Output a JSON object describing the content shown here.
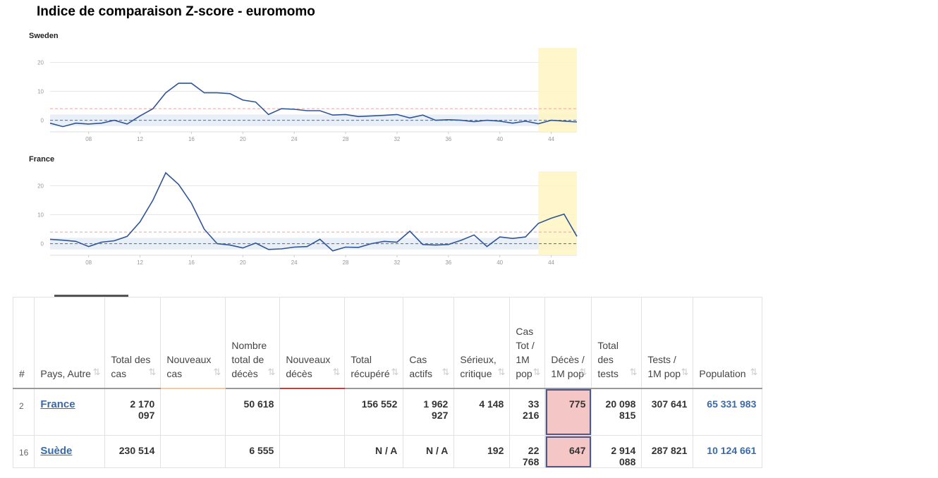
{
  "title": "Indice de comparaison Z-score - euromomo",
  "chart_data": [
    {
      "type": "line",
      "title": "Sweden",
      "color": "#2f5597",
      "x": [
        5,
        6,
        7,
        8,
        9,
        10,
        11,
        12,
        13,
        14,
        15,
        16,
        17,
        18,
        19,
        20,
        21,
        22,
        23,
        24,
        25,
        26,
        27,
        28,
        29,
        30,
        31,
        32,
        33,
        34,
        35,
        36,
        37,
        38,
        39,
        40,
        41,
        42,
        43,
        44,
        45,
        46
      ],
      "values": [
        -1,
        -2.2,
        -1,
        -1.3,
        -1,
        0,
        -1.3,
        1.5,
        4,
        9.5,
        12.8,
        12.8,
        9.5,
        9.5,
        9.2,
        7,
        6.3,
        2,
        4,
        3.8,
        3.3,
        3.3,
        1.8,
        2,
        1.3,
        1.5,
        1.7,
        2,
        0.8,
        1.8,
        0,
        0.2,
        0,
        -0.5,
        0,
        -0.3,
        -1,
        -0.3,
        -1.2,
        0,
        -0.3,
        -0.6
      ],
      "xlim": [
        5,
        46
      ],
      "ylim": [
        -4,
        25
      ],
      "xticks": [
        {
          "value": 8,
          "label": "08"
        },
        12,
        16,
        20,
        24,
        28,
        32,
        36,
        40,
        44
      ],
      "yticks": [
        0,
        10,
        20
      ],
      "grid": true,
      "threshold": 4,
      "baseline": 0,
      "band": [
        -2,
        2
      ],
      "highlight": [
        43,
        46
      ]
    },
    {
      "type": "line",
      "title": "France",
      "color": "#2f5597",
      "x": [
        5,
        6,
        7,
        8,
        9,
        10,
        11,
        12,
        13,
        14,
        15,
        16,
        17,
        18,
        19,
        20,
        21,
        22,
        23,
        24,
        25,
        26,
        27,
        28,
        29,
        30,
        31,
        32,
        33,
        34,
        35,
        36,
        37,
        38,
        39,
        40,
        41,
        42,
        43,
        44,
        45,
        46
      ],
      "values": [
        1.5,
        1.2,
        0.8,
        -1,
        0.5,
        1,
        2.5,
        7.5,
        15,
        24.5,
        20.5,
        14,
        5,
        0,
        -0.5,
        -1.5,
        0.2,
        -2,
        -1.8,
        -1.2,
        -1,
        1.5,
        -2.5,
        -1.2,
        -1.3,
        0,
        0.8,
        0.5,
        4.3,
        -0.3,
        -0.5,
        -0.3,
        1.2,
        3,
        -1,
        2.3,
        1.8,
        2.3,
        7,
        8.8,
        10.2,
        2.5
      ],
      "xlim": [
        5,
        46
      ],
      "ylim": [
        -4,
        25
      ],
      "xticks": [
        {
          "value": 8,
          "label": "08"
        },
        12,
        16,
        20,
        24,
        28,
        32,
        36,
        40,
        44
      ],
      "yticks": [
        0,
        10,
        20
      ],
      "grid": true,
      "threshold": 4,
      "baseline": 0,
      "band": [
        -2,
        2
      ],
      "highlight": [
        43,
        46
      ]
    }
  ],
  "table": {
    "headers": [
      "#",
      "Pays, Autre",
      "Total des cas",
      "Nouveaux cas",
      "Nombre total de décès",
      "Nouveaux décès",
      "Total récupéré",
      "Cas actifs",
      "Sérieux, critique",
      "Cas Tot / 1M pop",
      "Décès / 1M pop",
      "Total des tests",
      "Tests / 1M pop",
      "Population"
    ],
    "rows": [
      [
        "2",
        "France",
        "2 170 097",
        null,
        "50 618",
        null,
        "156 552",
        "1 962 927",
        "4 148",
        "33 216",
        "775",
        "20 098 815",
        "307 641",
        "65 331 983"
      ],
      [
        "16",
        "Suède",
        "230 514",
        null,
        "6 555",
        null,
        "N / A",
        "N / A",
        "192",
        "22 768",
        "647",
        "2 914 088",
        "287 821",
        "10 124 661"
      ]
    ]
  }
}
